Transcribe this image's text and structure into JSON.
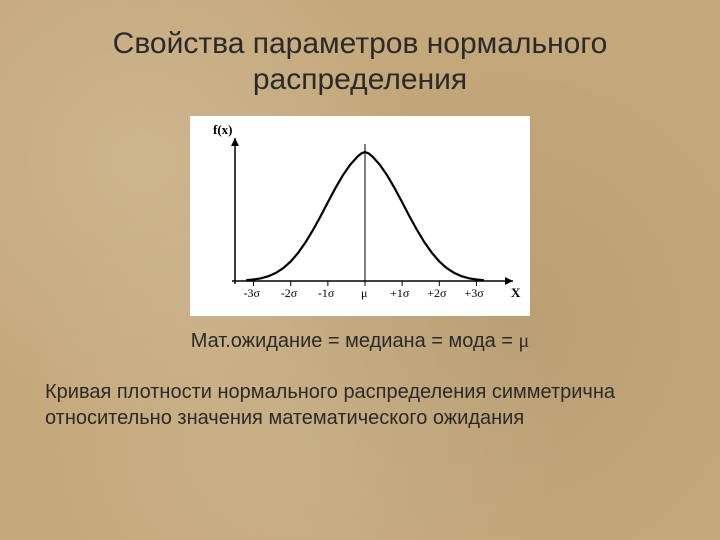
{
  "title": "Свойства параметров нормального распределения",
  "caption_prefix": "Мат.ожидание = медиана = мода  = ",
  "caption_symbol": "μ",
  "body": "Кривая плотности нормального распределения симметрична относительно значения математического ожидания",
  "chart": {
    "type": "line",
    "background_color": "#ffffff",
    "curve_color": "#000000",
    "curve_width": 2.2,
    "axis_color": "#000000",
    "axis_width": 1.5,
    "y_axis_label": "f(x)",
    "x_axis_label": "X",
    "mu_label": "μ",
    "tick_labels_left": [
      "-3σ",
      "-2σ",
      "-1σ"
    ],
    "tick_labels_right": [
      "+1σ",
      "+2σ",
      "+3σ"
    ],
    "xlim": [
      -3.5,
      3.5
    ],
    "curve_points": [
      [
        -3.2,
        0.005
      ],
      [
        -3.0,
        0.01
      ],
      [
        -2.8,
        0.018
      ],
      [
        -2.6,
        0.032
      ],
      [
        -2.4,
        0.054
      ],
      [
        -2.2,
        0.086
      ],
      [
        -2.0,
        0.13
      ],
      [
        -1.8,
        0.188
      ],
      [
        -1.6,
        0.258
      ],
      [
        -1.4,
        0.34
      ],
      [
        -1.2,
        0.43
      ],
      [
        -1.0,
        0.525
      ],
      [
        -0.8,
        0.618
      ],
      [
        -0.6,
        0.703
      ],
      [
        -0.4,
        0.775
      ],
      [
        -0.2,
        0.83
      ],
      [
        -0.1,
        0.85
      ],
      [
        0.0,
        0.86
      ],
      [
        0.1,
        0.85
      ],
      [
        0.2,
        0.83
      ],
      [
        0.4,
        0.775
      ],
      [
        0.6,
        0.703
      ],
      [
        0.8,
        0.618
      ],
      [
        1.0,
        0.525
      ],
      [
        1.2,
        0.43
      ],
      [
        1.4,
        0.34
      ],
      [
        1.6,
        0.258
      ],
      [
        1.8,
        0.188
      ],
      [
        2.0,
        0.13
      ],
      [
        2.2,
        0.086
      ],
      [
        2.4,
        0.054
      ],
      [
        2.6,
        0.032
      ],
      [
        2.8,
        0.018
      ],
      [
        3.0,
        0.01
      ],
      [
        3.2,
        0.005
      ]
    ],
    "tick_positions": [
      -3,
      -2,
      -1,
      1,
      2,
      3
    ]
  },
  "colors": {
    "slide_bg": "#c4a87a",
    "text": "#2a2a2a"
  },
  "fonts": {
    "title_size": 30,
    "body_size": 20,
    "axis_label_size": 13,
    "tick_label_size": 12
  }
}
